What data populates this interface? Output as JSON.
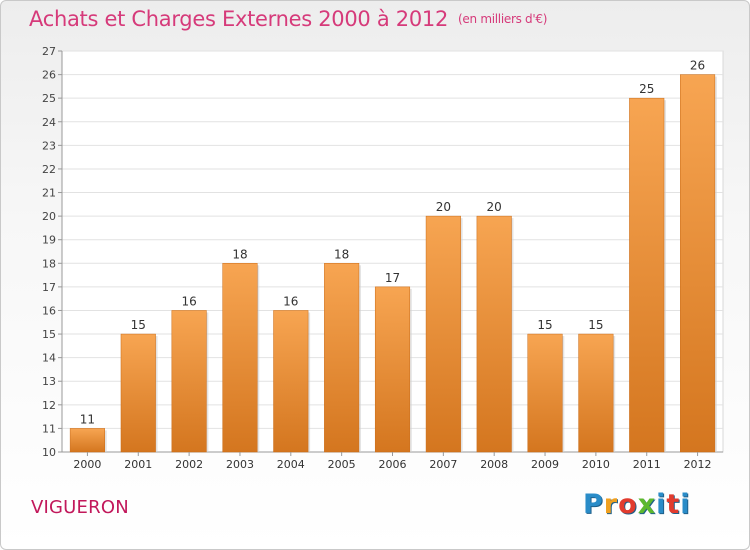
{
  "header": {
    "title": "Achats et Charges Externes 2000 à 2012",
    "unit": "(en milliers d'€)"
  },
  "footer": {
    "commune": "VIGUERON",
    "logo_text": "Proxiti"
  },
  "colors": {
    "title": "#d63a7a",
    "bar_light": "#f7a552",
    "bar_dark": "#d4761f",
    "logo": [
      "#2a8cc8",
      "#f0a020",
      "#e23b2e",
      "#5cb82e",
      "#2a8cc8",
      "#e23b2e",
      "#2a8cc8"
    ]
  },
  "chart_data": {
    "type": "bar",
    "title": "Achats et Charges Externes 2000 à 2012",
    "subtitle": "(en milliers d'€)",
    "categories": [
      "2000",
      "2001",
      "2002",
      "2003",
      "2004",
      "2005",
      "2006",
      "2007",
      "2008",
      "2009",
      "2010",
      "2011",
      "2012"
    ],
    "values": [
      11,
      15,
      16,
      18,
      16,
      18,
      17,
      20,
      20,
      15,
      15,
      25,
      26
    ],
    "xlabel": "",
    "ylabel": "",
    "ylim": [
      10,
      27
    ],
    "yticks": [
      10,
      11,
      12,
      13,
      14,
      15,
      16,
      17,
      18,
      19,
      20,
      21,
      22,
      23,
      24,
      25,
      26,
      27
    ],
    "grid": true,
    "data_labels": true,
    "legend": "none"
  }
}
